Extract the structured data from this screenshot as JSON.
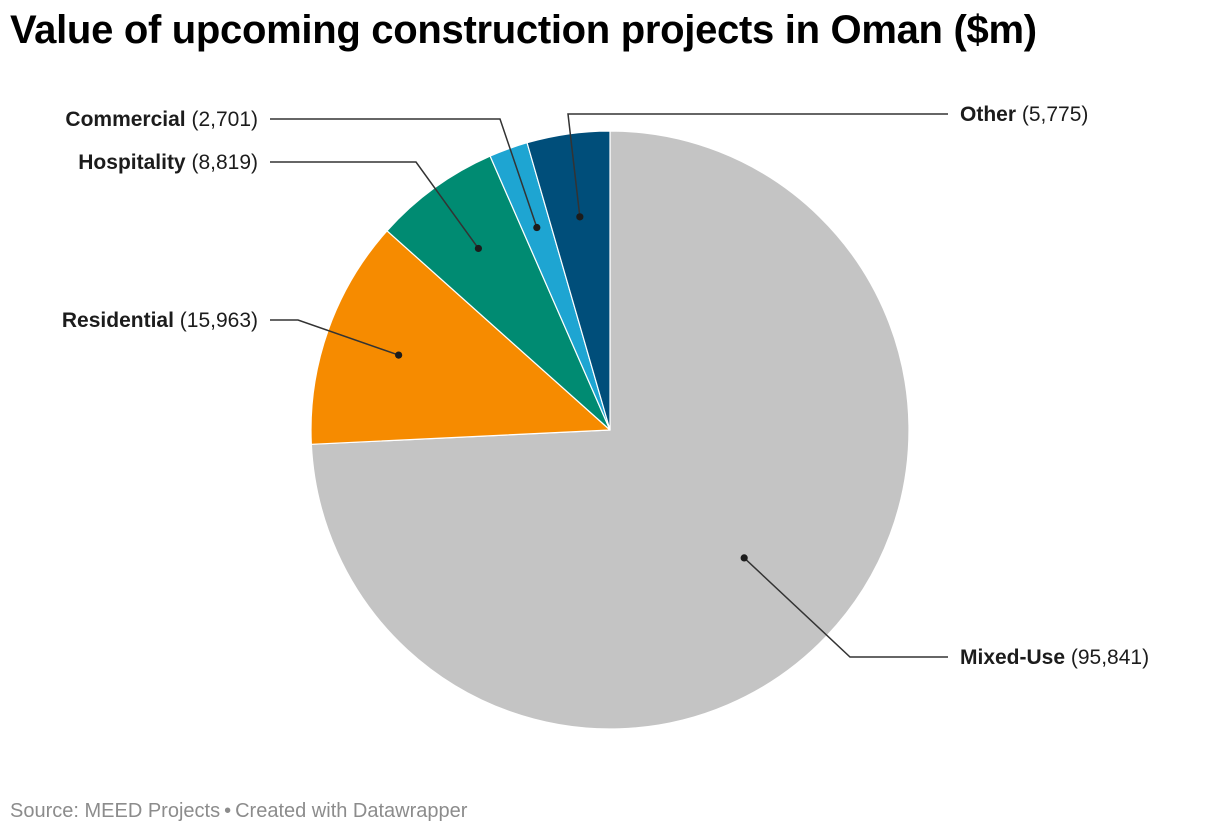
{
  "title": "Value of upcoming construction projects in Oman ($m)",
  "footer": {
    "source": "Source: MEED Projects",
    "separator": "•",
    "credit": "Created with Datawrapper"
  },
  "chart_data": {
    "type": "pie",
    "title": "Value of upcoming construction projects in Oman ($m)",
    "unit": "$m",
    "slices": [
      {
        "label": "Mixed-Use",
        "value": 95841,
        "display": "(95,841)",
        "color": "#c4c4c4"
      },
      {
        "label": "Residential",
        "value": 15963,
        "display": "(15,963)",
        "color": "#f68b00"
      },
      {
        "label": "Hospitality",
        "value": 8819,
        "display": "(8,819)",
        "color": "#008b72"
      },
      {
        "label": "Commercial",
        "value": 2701,
        "display": "(2,701)",
        "color": "#1ea5d2"
      },
      {
        "label": "Other",
        "value": 5775,
        "display": "(5,775)",
        "color": "#004e7a"
      }
    ]
  }
}
